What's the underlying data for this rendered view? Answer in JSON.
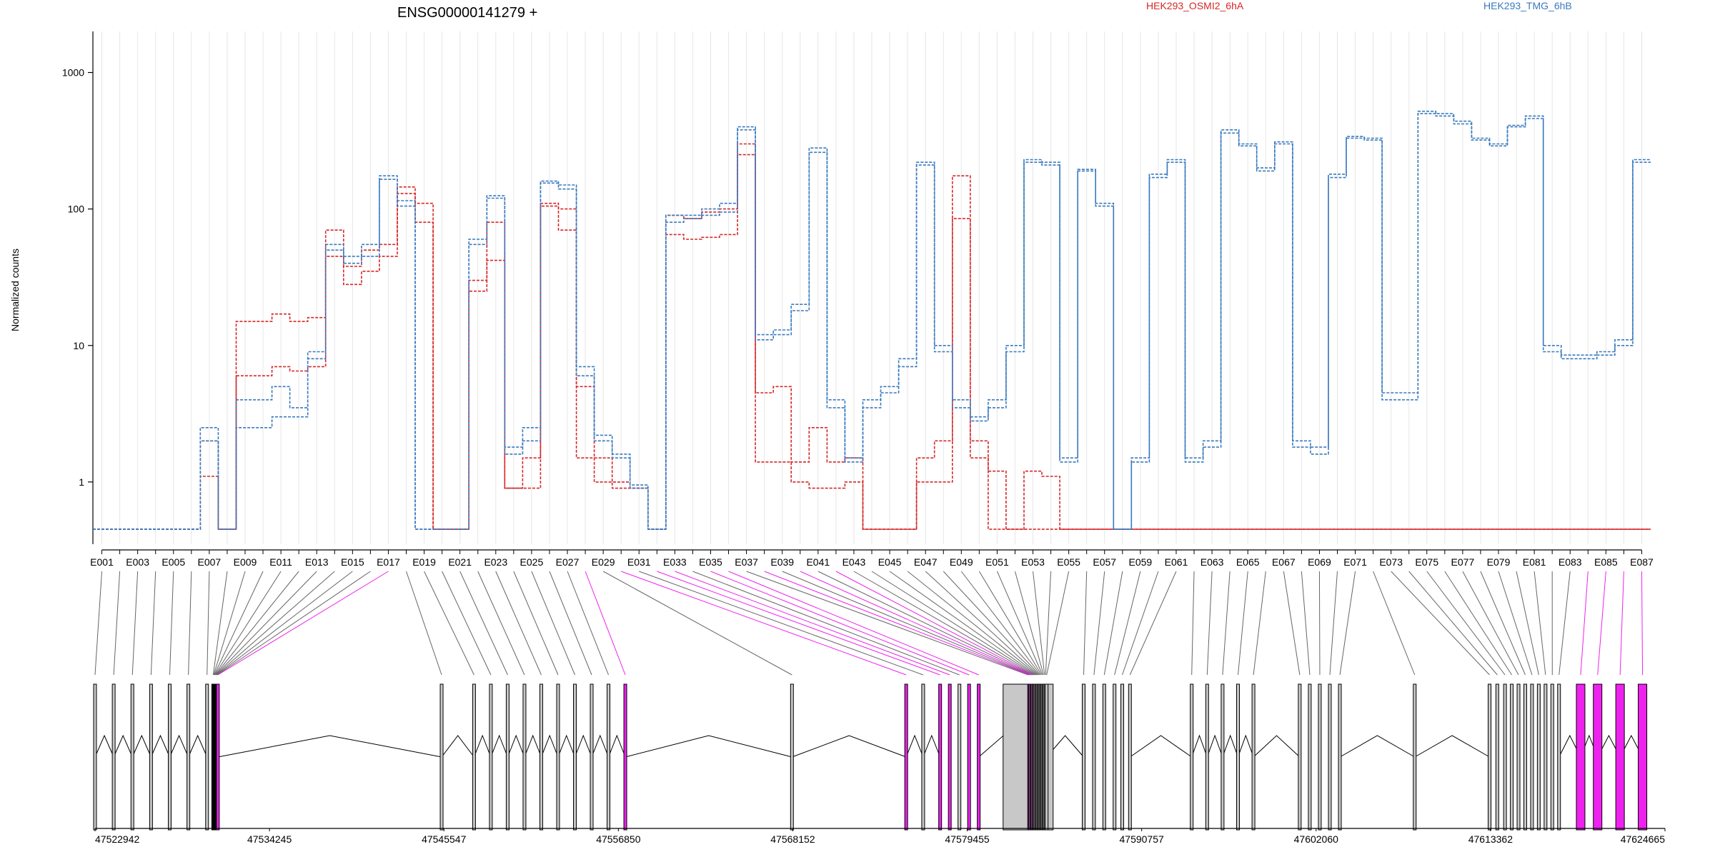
{
  "chart_data": {
    "type": "line",
    "title": "ENSG00000141279 +",
    "ylabel": "Normalized counts",
    "xlabel": "",
    "yscale": "log",
    "ylim": [
      0.35,
      2000
    ],
    "y_ticks": [
      1,
      10,
      100,
      1000
    ],
    "y_tick_labels": [
      "1",
      "10",
      "100",
      "1000"
    ],
    "grid": "vertical",
    "legend_position": "top",
    "colors": {
      "group_a": "#d62728",
      "group_b": "#3a7abf",
      "gene_model": "#000000",
      "highlight": "#ee22ee",
      "exon_fill": "#c8c8c8"
    },
    "x_tick_labels": [
      "E001",
      "E003",
      "E005",
      "E007",
      "E009",
      "E011",
      "E013",
      "E015",
      "E017",
      "E019",
      "E021",
      "E023",
      "E025",
      "E027",
      "E029",
      "E031",
      "E033",
      "E035",
      "E037",
      "E039",
      "E041",
      "E043",
      "E045",
      "E047",
      "E049",
      "E051",
      "E053",
      "E055",
      "E057",
      "E059",
      "E061",
      "E063",
      "E065",
      "E067",
      "E069",
      "E071",
      "E073",
      "E075",
      "E077",
      "E079",
      "E081",
      "E083",
      "E085",
      "E087"
    ],
    "genomic_axis_labels": [
      "47522942",
      "47534245",
      "47545547",
      "47556850",
      "47568152",
      "47579455",
      "47590757",
      "47602060",
      "47613362",
      "47624665"
    ],
    "genomic_range": [
      47522942,
      47624665
    ],
    "highlighted_exons": [
      17,
      28,
      30,
      32,
      33,
      35,
      36,
      38,
      40,
      42,
      84,
      85,
      86,
      87
    ],
    "bins": [
      "E001",
      "E002",
      "E003",
      "E004",
      "E005",
      "E006",
      "E007",
      "E008",
      "E009",
      "E010",
      "E011",
      "E012",
      "E013",
      "E014",
      "E015",
      "E016",
      "E017",
      "E018",
      "E019",
      "E020",
      "E021",
      "E022",
      "E023",
      "E024",
      "E025",
      "E026",
      "E027",
      "E028",
      "E029",
      "E030",
      "E031",
      "E032",
      "E033",
      "E034",
      "E035",
      "E036",
      "E037",
      "E038",
      "E039",
      "E040",
      "E041",
      "E042",
      "E043",
      "E044",
      "E045",
      "E046",
      "E047",
      "E048",
      "E049",
      "E050",
      "E051",
      "E052",
      "E053",
      "E054",
      "E055",
      "E056",
      "E057",
      "E058",
      "E059",
      "E060",
      "E061",
      "E062",
      "E063",
      "E064",
      "E065",
      "E066",
      "E067",
      "E068",
      "E069",
      "E070",
      "E071",
      "E072",
      "E073",
      "E074",
      "E075",
      "E076",
      "E077",
      "E078",
      "E079",
      "E080",
      "E081",
      "E082",
      "E083",
      "E084",
      "E085",
      "E086",
      "E087"
    ],
    "series": [
      {
        "group": "HEK293_OSMI2_6hA",
        "values": [
          0.45,
          0.45,
          0.45,
          0.45,
          0.45,
          0.45,
          2.0,
          0.45,
          15,
          15,
          17,
          15,
          16,
          70,
          38,
          50,
          55,
          145,
          110,
          0.45,
          0.45,
          30,
          80,
          0.9,
          1.5,
          110,
          100,
          5,
          1.5,
          1,
          0.9,
          0.45,
          90,
          85,
          95,
          100,
          300,
          4.5,
          5,
          1.4,
          2.5,
          1.4,
          1.5,
          0.45,
          0.45,
          0.45,
          1.5,
          2,
          175,
          1.5,
          0.45,
          0.45,
          1.2,
          1.1,
          0.45,
          0.45,
          0.45,
          0.45,
          0.45,
          0.45,
          0.45,
          0.45,
          0.45,
          0.45,
          0.45,
          0.45,
          0.45,
          0.45,
          0.45,
          0.45,
          0.45,
          0.45,
          0.45,
          0.45,
          0.45,
          0.45,
          0.45,
          0.45,
          0.45,
          0.45,
          0.45,
          0.45,
          0.45,
          0.45,
          0.45,
          0.45,
          0.45
        ]
      },
      {
        "group": "HEK293_OSMI2_6hA",
        "values": [
          0.45,
          0.45,
          0.45,
          0.45,
          0.45,
          0.45,
          1.1,
          0.45,
          6,
          6,
          7,
          6.5,
          7,
          45,
          28,
          35,
          45,
          130,
          80,
          0.45,
          0.45,
          25,
          42,
          0.9,
          0.9,
          105,
          70,
          1.5,
          1,
          0.9,
          0.9,
          0.45,
          65,
          60,
          62,
          65,
          250,
          1.4,
          1.4,
          1,
          0.9,
          0.9,
          1,
          0.45,
          0.45,
          0.45,
          1,
          1,
          85,
          2,
          1.2,
          0.45,
          0.45,
          0.45,
          0.45,
          0.45,
          0.45,
          0.45,
          0.45,
          0.45,
          0.45,
          0.45,
          0.45,
          0.45,
          0.45,
          0.45,
          0.45,
          0.45,
          0.45,
          0.45,
          0.45,
          0.45,
          0.45,
          0.45,
          0.45,
          0.45,
          0.45,
          0.45,
          0.45,
          0.45,
          0.45,
          0.45,
          0.45,
          0.45,
          0.45,
          0.45,
          0.45
        ]
      },
      {
        "group": "HEK293_TMG_6hB",
        "values": [
          0.45,
          0.45,
          0.45,
          0.45,
          0.45,
          0.45,
          2.5,
          0.45,
          4,
          4,
          5,
          3.5,
          9,
          55,
          45,
          55,
          175,
          115,
          0.45,
          0.45,
          0.45,
          60,
          125,
          1.8,
          2.5,
          160,
          150,
          7,
          2.2,
          1.6,
          0.95,
          0.45,
          90,
          90,
          100,
          110,
          400,
          12,
          13,
          20,
          280,
          4,
          1.5,
          4,
          5,
          8,
          220,
          10,
          4,
          3,
          4,
          10,
          230,
          220,
          1.5,
          195,
          110,
          0.45,
          1.5,
          180,
          230,
          1.5,
          2,
          380,
          300,
          200,
          310,
          2,
          1.8,
          180,
          340,
          330,
          4.5,
          4.5,
          520,
          500,
          440,
          330,
          300,
          410,
          480,
          10,
          8.5,
          8.5,
          9,
          11,
          230
        ]
      },
      {
        "group": "HEK293_TMG_6hB",
        "values": [
          0.45,
          0.45,
          0.45,
          0.45,
          0.45,
          0.45,
          2.0,
          0.45,
          2.5,
          2.5,
          3,
          3,
          8,
          50,
          40,
          45,
          165,
          105,
          0.45,
          0.45,
          0.45,
          55,
          120,
          1.6,
          2,
          155,
          140,
          6,
          2,
          1.5,
          0.9,
          0.45,
          80,
          85,
          90,
          95,
          380,
          11,
          12,
          18,
          260,
          3.5,
          1.4,
          3.5,
          4.5,
          7,
          210,
          9,
          3.5,
          2.8,
          3.5,
          9,
          220,
          210,
          1.4,
          190,
          105,
          0.45,
          1.4,
          170,
          220,
          1.4,
          1.8,
          360,
          290,
          190,
          300,
          1.8,
          1.6,
          170,
          330,
          320,
          4,
          4,
          500,
          480,
          420,
          320,
          290,
          400,
          460,
          9,
          8,
          8,
          8.5,
          10,
          220
        ]
      }
    ]
  },
  "legend": {
    "a": "HEK293_OSMI2_6hA",
    "b": "HEK293_TMG_6hB"
  }
}
